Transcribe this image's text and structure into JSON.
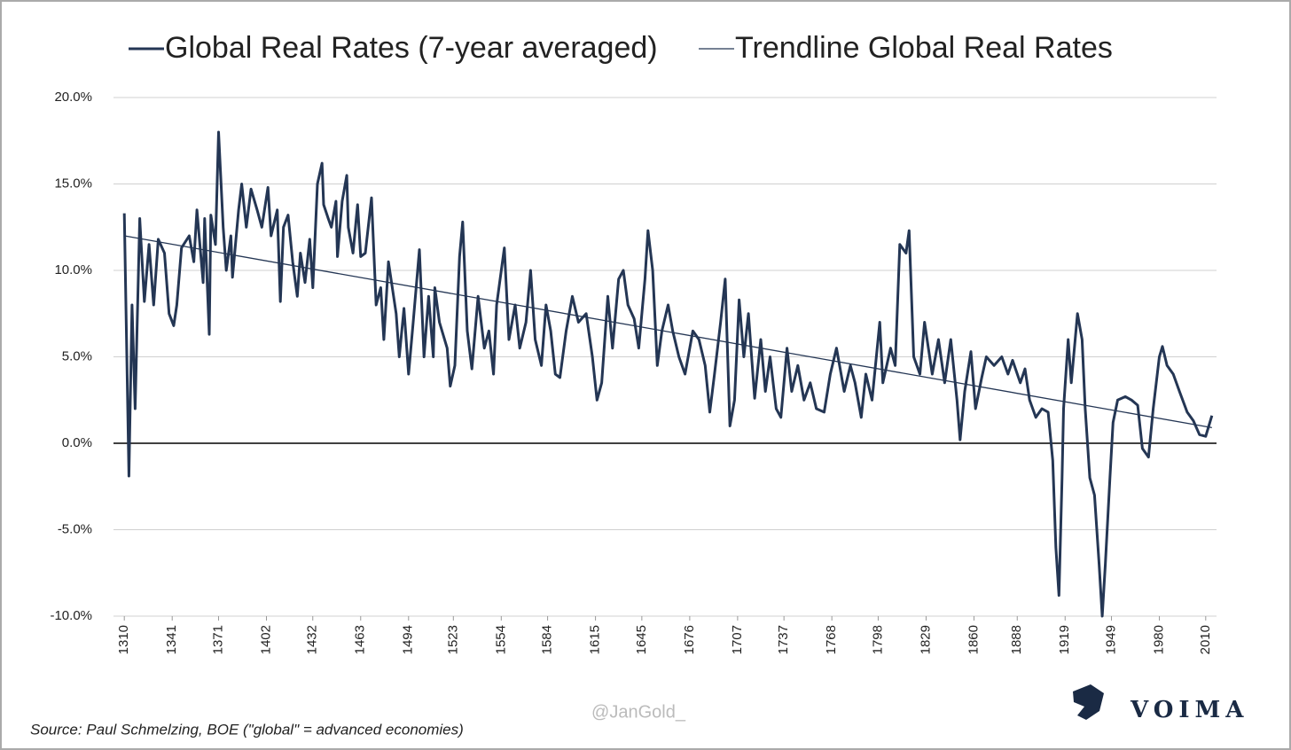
{
  "chart_data": {
    "type": "line",
    "series": [
      {
        "name": "Global Real Rates (7-year averaged)",
        "color": "#243654",
        "x": [
          1310,
          1313,
          1315,
          1317,
          1320,
          1323,
          1326,
          1329,
          1332,
          1336,
          1339,
          1342,
          1344,
          1347,
          1352,
          1355,
          1357,
          1361,
          1362,
          1365,
          1366,
          1369,
          1371,
          1374,
          1376,
          1379,
          1380,
          1384,
          1386,
          1389,
          1392,
          1396,
          1399,
          1403,
          1405,
          1409,
          1411,
          1413,
          1416,
          1419,
          1422,
          1424,
          1427,
          1430,
          1432,
          1435,
          1438,
          1439,
          1442,
          1444,
          1447,
          1448,
          1451,
          1454,
          1455,
          1458,
          1461,
          1463,
          1466,
          1470,
          1473,
          1476,
          1478,
          1481,
          1486,
          1488,
          1491,
          1494,
          1497,
          1501,
          1504,
          1507,
          1510,
          1511,
          1514,
          1519,
          1521,
          1524,
          1527,
          1529,
          1532,
          1535,
          1539,
          1543,
          1546,
          1549,
          1551,
          1556,
          1559,
          1563,
          1566,
          1570,
          1573,
          1576,
          1580,
          1583,
          1586,
          1589,
          1592,
          1596,
          1600,
          1604,
          1609,
          1613,
          1616,
          1619,
          1623,
          1626,
          1630,
          1633,
          1636,
          1640,
          1643,
          1647,
          1649,
          1652,
          1655,
          1658,
          1662,
          1665,
          1669,
          1673,
          1678,
          1682,
          1686,
          1689,
          1692,
          1696,
          1699,
          1702,
          1705,
          1708,
          1711,
          1714,
          1718,
          1722,
          1725,
          1728,
          1732,
          1735,
          1739,
          1742,
          1746,
          1750,
          1754,
          1758,
          1763,
          1767,
          1771,
          1776,
          1780,
          1783,
          1787,
          1790,
          1794,
          1799,
          1801,
          1806,
          1809,
          1812,
          1816,
          1818,
          1821,
          1825,
          1828,
          1833,
          1837,
          1841,
          1845,
          1849,
          1851,
          1854,
          1858,
          1861,
          1865,
          1868,
          1873,
          1878,
          1882,
          1885,
          1890,
          1893,
          1896,
          1900,
          1904,
          1908,
          1911,
          1913,
          1915,
          1917,
          1918,
          1921,
          1923,
          1927,
          1930,
          1932,
          1935,
          1938,
          1941,
          1943,
          1945,
          1948,
          1950,
          1953,
          1958,
          1962,
          1966,
          1969,
          1973,
          1976,
          1980,
          1982,
          1985,
          1989,
          1993,
          1998,
          2002,
          2006,
          2010,
          2014
        ],
        "values": [
          13.3,
          -1.9,
          8,
          2,
          13,
          8.2,
          11.5,
          8,
          11.8,
          11,
          7.5,
          6.8,
          8,
          11.3,
          12,
          10.5,
          13.5,
          9.3,
          13,
          6.3,
          13.2,
          11.5,
          18,
          12.5,
          10,
          12,
          9.6,
          13.5,
          15,
          12.5,
          14.7,
          13.5,
          12.5,
          14.8,
          12,
          13.5,
          8.2,
          12.5,
          13.2,
          10.5,
          8.5,
          11,
          9.3,
          11.8,
          9,
          15,
          16.2,
          13.8,
          13,
          12.5,
          14,
          10.8,
          14,
          15.5,
          12.5,
          11,
          13.8,
          10.8,
          11,
          14.2,
          8,
          9,
          6,
          10.5,
          7.5,
          5,
          7.8,
          4,
          7,
          11.2,
          5,
          8.5,
          5,
          9,
          7,
          5.5,
          3.3,
          4.5,
          10.8,
          12.8,
          6.5,
          4.3,
          8.5,
          5.5,
          6.5,
          4,
          8,
          11.3,
          6,
          8,
          5.5,
          7,
          10,
          6,
          4.5,
          8,
          6.5,
          4,
          3.8,
          6.5,
          8.5,
          7,
          7.5,
          5,
          2.5,
          3.5,
          8.5,
          5.5,
          9.5,
          10,
          8,
          7.2,
          5.5,
          9.5,
          12.3,
          10,
          4.5,
          6.5,
          8,
          6.5,
          5,
          4,
          6.5,
          6,
          4.5,
          1.8,
          4,
          7,
          9.5,
          1,
          2.5,
          8.3,
          5,
          7.5,
          2.6,
          6,
          3,
          5,
          2,
          1.5,
          5.5,
          3,
          4.5,
          2.5,
          3.5,
          2,
          1.8,
          4,
          5.5,
          3,
          4.5,
          3.5,
          1.5,
          4,
          2.5,
          7,
          3.5,
          5.5,
          4.5,
          11.5,
          11,
          12.3,
          5,
          4,
          7,
          4,
          6,
          3.5,
          6,
          2.5,
          0.2,
          3,
          5.3,
          2,
          3.8,
          5,
          4.5,
          5,
          4,
          4.8,
          3.5,
          4.3,
          2.5,
          1.5,
          2,
          1.8,
          -1,
          -6,
          -8.8,
          -2,
          2,
          6,
          3.5,
          7.5,
          6,
          2,
          -2,
          -3,
          -7,
          -10,
          -7,
          -2,
          1.2,
          2.5,
          2.7,
          2.5,
          2.2,
          -0.3,
          -0.8,
          2,
          5,
          5.6,
          4.5,
          4,
          3,
          1.8,
          1.3,
          0.5,
          0.4,
          1.6
        ]
      },
      {
        "name": "Trendline Global Real Rates",
        "color": "#243654",
        "x": [
          1310,
          2014
        ],
        "values": [
          12,
          0.9
        ]
      }
    ],
    "xlim": [
      1303,
      2017
    ],
    "xticks": [
      1310,
      1341,
      1371,
      1402,
      1432,
      1463,
      1494,
      1523,
      1554,
      1584,
      1615,
      1645,
      1676,
      1707,
      1737,
      1768,
      1798,
      1829,
      1860,
      1888,
      1919,
      1949,
      1980,
      2010
    ],
    "ylim": [
      -10,
      20
    ],
    "yticks": [
      {
        "value": -10,
        "label": "-10.0%"
      },
      {
        "value": -5,
        "label": "-5.0%"
      },
      {
        "value": 0,
        "label": "0.0%"
      },
      {
        "value": 5,
        "label": "5.0%"
      },
      {
        "value": 10,
        "label": "10.0%"
      },
      {
        "value": 15,
        "label": "15.0%"
      },
      {
        "value": 20,
        "label": "20.0%"
      }
    ],
    "grid": true,
    "source": "Source: Paul Schmelzing, BOE (\"global\" = advanced economies)",
    "watermark": "@JanGold_",
    "brand": "VOIMA"
  }
}
